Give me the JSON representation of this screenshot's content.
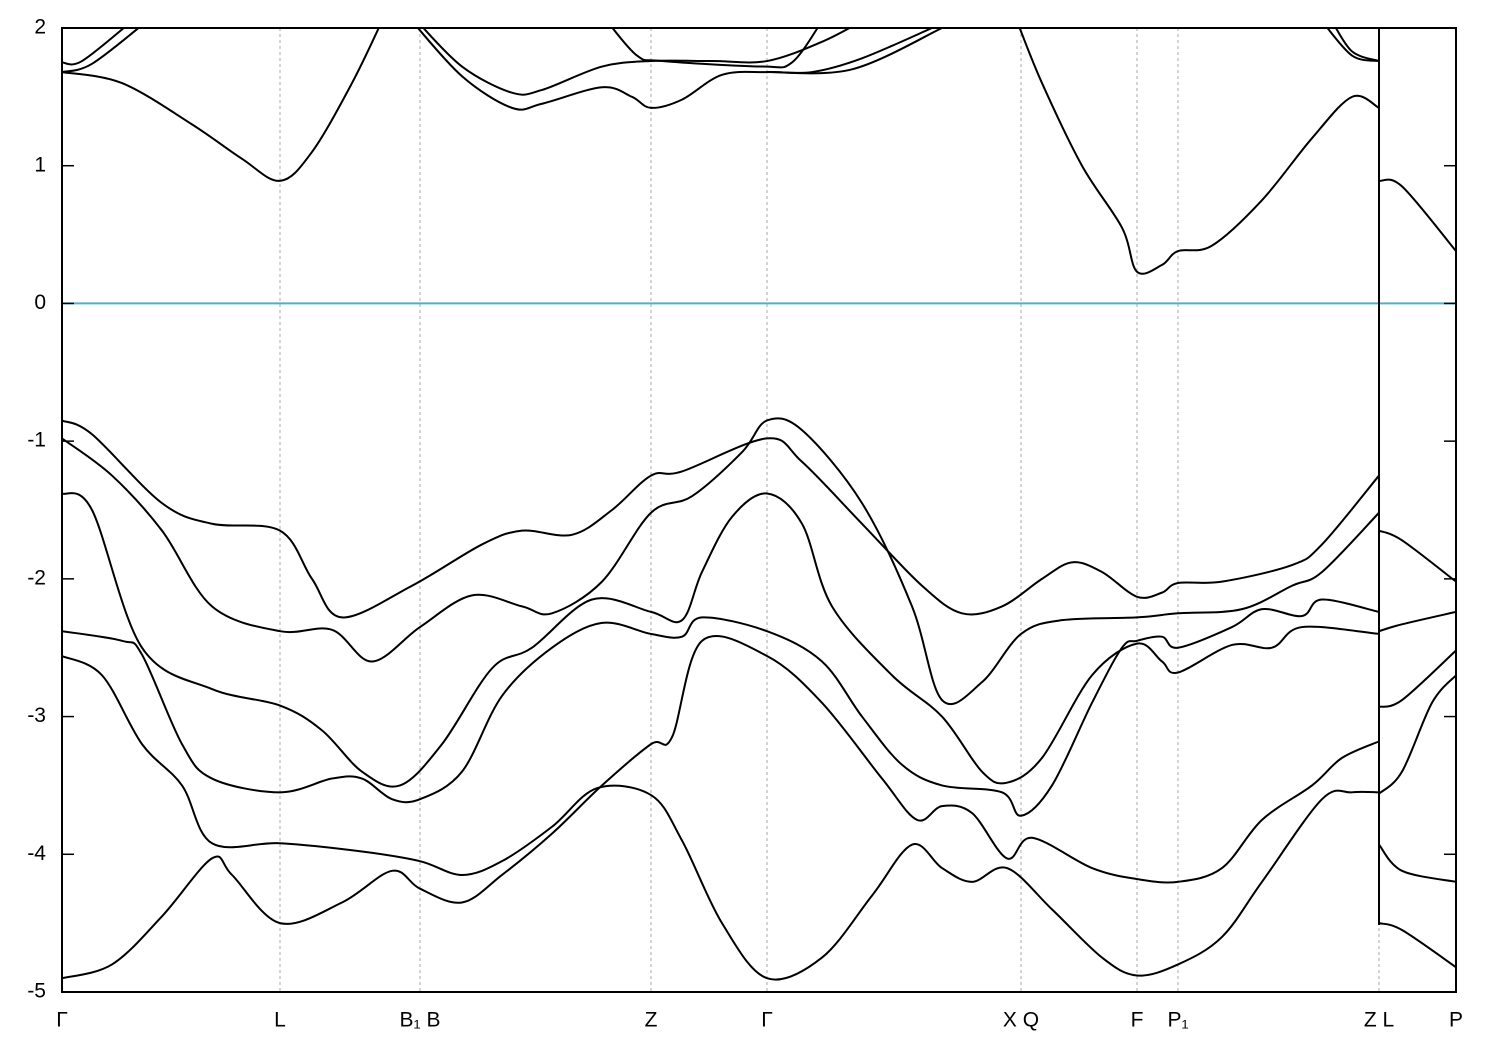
{
  "chart_data": {
    "type": "line",
    "xlim": [
      0,
      1394
    ],
    "ylim": [
      -5,
      2
    ],
    "yticks": [
      -5,
      -4,
      -3,
      -2,
      -1,
      0,
      1,
      2
    ],
    "xticks": [
      {
        "value": 0,
        "label": "Γ"
      },
      {
        "value": 218,
        "label": "L"
      },
      {
        "value": 358,
        "label": "B₁ B"
      },
      {
        "value": 589,
        "label": "Z"
      },
      {
        "value": 705,
        "label": "Γ"
      },
      {
        "value": 959,
        "label": "X Q"
      },
      {
        "value": 1075,
        "label": "F"
      },
      {
        "value": 1116,
        "label": "P₁"
      },
      {
        "value": 1317,
        "label": "Z L"
      },
      {
        "value": 1394,
        "label": "P"
      }
    ],
    "line_color": "#000000",
    "grid_color": "#aaaaaa",
    "hline": {
      "value": 0,
      "color": "#4fb0c6"
    },
    "series": [
      {
        "x": [
          0,
          60,
          130,
          180,
          218,
          250,
          290,
          320
        ],
        "values": [
          1.68,
          1.6,
          1.3,
          1.05,
          0.89,
          1.1,
          1.6,
          2.05
        ]
      },
      {
        "x": [
          0,
          20,
          70
        ],
        "values": [
          1.75,
          1.76,
          2.05
        ]
      },
      {
        "x": [
          0,
          30,
          85
        ],
        "values": [
          1.68,
          1.74,
          2.05
        ]
      },
      {
        "x": [
          350,
          400,
          450,
          480,
          540,
          570,
          589,
          620,
          660,
          705,
          750,
          800,
          870
        ],
        "values": [
          2.05,
          1.65,
          1.42,
          1.45,
          1.57,
          1.5,
          1.42,
          1.48,
          1.66,
          1.68,
          1.68,
          1.78,
          2.0
        ]
      },
      {
        "x": [
          355,
          400,
          450,
          480,
          540,
          589,
          650,
          705,
          760,
          800
        ],
        "values": [
          2.05,
          1.72,
          1.53,
          1.55,
          1.72,
          1.76,
          1.76,
          1.76,
          1.9,
          2.05
        ]
      },
      {
        "x": [
          545,
          575,
          600,
          700,
          730,
          760
        ],
        "values": [
          2.05,
          1.8,
          1.76,
          1.72,
          1.75,
          2.05
        ]
      },
      {
        "x": [
          705,
          790,
          880
        ],
        "values": [
          1.68,
          1.7,
          2.0
        ]
      },
      {
        "x": [
          955,
          980,
          1020,
          1060,
          1075,
          1100,
          1116,
          1150,
          1200,
          1250,
          1290,
          1317
        ],
        "values": [
          2.05,
          1.6,
          1.0,
          0.55,
          0.23,
          0.28,
          0.38,
          0.42,
          0.75,
          1.2,
          1.5,
          1.42
        ]
      },
      {
        "x": [
          1270,
          1290,
          1317
        ],
        "values": [
          2.05,
          1.83,
          1.76
        ]
      },
      {
        "x": [
          1260,
          1290,
          1317
        ],
        "values": [
          2.05,
          1.8,
          1.76
        ]
      },
      {
        "x": [
          1317,
          1340,
          1394
        ],
        "values": [
          0.89,
          0.85,
          0.38
        ]
      },
      {
        "x": [
          0,
          30,
          100,
          150,
          218,
          250,
          280,
          350,
          420,
          460,
          510,
          550,
          589,
          620,
          705,
          740,
          800,
          860,
          900,
          940,
          980,
          1010,
          1040,
          1075,
          1100,
          1116,
          1160,
          1230,
          1260,
          1317
        ],
        "values": [
          -0.85,
          -0.95,
          -1.45,
          -1.6,
          -1.65,
          -2.0,
          -2.28,
          -2.05,
          -1.75,
          -1.65,
          -1.68,
          -1.5,
          -1.25,
          -1.22,
          -0.98,
          -1.15,
          -1.6,
          -2.05,
          -2.25,
          -2.2,
          -2.0,
          -1.88,
          -1.95,
          -2.13,
          -2.1,
          -2.03,
          -2.02,
          -1.9,
          -1.75,
          -1.25
        ]
      },
      {
        "x": [
          0,
          50,
          100,
          150,
          218,
          270,
          310,
          358,
          410,
          460,
          490,
          540,
          589,
          630,
          680,
          705,
          740,
          800,
          850,
          880,
          920,
          959,
          1000,
          1075,
          1116,
          1180,
          1230,
          1260,
          1317
        ],
        "values": [
          -0.98,
          -1.25,
          -1.65,
          -2.2,
          -2.38,
          -2.37,
          -2.6,
          -2.35,
          -2.12,
          -2.2,
          -2.25,
          -2.02,
          -1.52,
          -1.4,
          -1.08,
          -0.85,
          -0.92,
          -1.45,
          -2.2,
          -2.88,
          -2.75,
          -2.4,
          -2.3,
          -2.28,
          -2.25,
          -2.22,
          -2.05,
          -1.95,
          -1.52
        ]
      },
      {
        "x": [
          0,
          30,
          80,
          150,
          218,
          260,
          300,
          338,
          380,
          430,
          470,
          530,
          589,
          620,
          640,
          670,
          705,
          740,
          770,
          830,
          880,
          920,
          945,
          980,
          1030,
          1075,
          1100,
          1116,
          1170,
          1210,
          1240,
          1317
        ],
        "values": [
          -1.38,
          -1.5,
          -2.5,
          -2.8,
          -2.92,
          -3.1,
          -3.4,
          -3.5,
          -3.2,
          -2.65,
          -2.5,
          -2.15,
          -2.24,
          -2.3,
          -1.95,
          -1.55,
          -1.38,
          -1.6,
          -2.2,
          -2.7,
          -3.0,
          -3.4,
          -3.48,
          -3.3,
          -2.7,
          -2.47,
          -2.6,
          -2.68,
          -2.48,
          -2.5,
          -2.35,
          -2.4
        ]
      },
      {
        "x": [
          0,
          60,
          80,
          120,
          150,
          218,
          270,
          300,
          330,
          358,
          400,
          440,
          490,
          540,
          589,
          620,
          640,
          705,
          760,
          800,
          840,
          880,
          940,
          959,
          990,
          1030,
          1060,
          1075,
          1100,
          1116,
          1170,
          1200,
          1240,
          1260,
          1317
        ],
        "values": [
          -2.38,
          -2.45,
          -2.55,
          -3.2,
          -3.45,
          -3.55,
          -3.45,
          -3.45,
          -3.6,
          -3.6,
          -3.4,
          -2.85,
          -2.5,
          -2.32,
          -2.4,
          -2.42,
          -2.28,
          -2.38,
          -2.6,
          -3.0,
          -3.35,
          -3.5,
          -3.55,
          -3.72,
          -3.5,
          -2.9,
          -2.5,
          -2.45,
          -2.42,
          -2.5,
          -2.35,
          -2.22,
          -2.27,
          -2.15,
          -2.24
        ]
      },
      {
        "x": [
          0,
          40,
          80,
          120,
          150,
          218,
          300,
          358,
          400,
          440,
          490,
          535,
          589,
          620,
          660,
          705,
          760,
          810,
          850,
          880,
          910,
          945,
          990,
          1040,
          1075,
          1116,
          1160,
          1200,
          1260,
          1290,
          1317
        ],
        "values": [
          -2.56,
          -2.7,
          -3.2,
          -3.5,
          -3.92,
          -3.92,
          -3.98,
          -4.05,
          -4.15,
          -4.05,
          -3.8,
          -3.52,
          -3.57,
          -3.9,
          -4.5,
          -4.9,
          -4.75,
          -4.3,
          -3.93,
          -4.1,
          -4.2,
          -4.1,
          -4.4,
          -4.75,
          -4.88,
          -4.8,
          -4.6,
          -4.2,
          -3.6,
          -3.55,
          -3.55
        ]
      },
      {
        "x": [
          0,
          50,
          100,
          150,
          170,
          218,
          280,
          330,
          358,
          400,
          440,
          490,
          540,
          589,
          610,
          640,
          705,
          760,
          820,
          855,
          880,
          910,
          945,
          970,
          1030,
          1075,
          1116,
          1160,
          1200,
          1250,
          1280,
          1317
        ],
        "values": [
          -4.9,
          -4.8,
          -4.45,
          -4.03,
          -4.15,
          -4.5,
          -4.35,
          -4.12,
          -4.25,
          -4.35,
          -4.15,
          -3.85,
          -3.5,
          -3.2,
          -3.15,
          -2.45,
          -2.56,
          -2.9,
          -3.45,
          -3.75,
          -3.65,
          -3.7,
          -4.03,
          -3.88,
          -4.1,
          -4.18,
          -4.2,
          -4.1,
          -3.75,
          -3.5,
          -3.3,
          -3.18
        ]
      },
      {
        "x": [
          1317,
          1340,
          1394
        ],
        "values": [
          -1.65,
          -1.72,
          -2.02
        ]
      },
      {
        "x": [
          1317,
          1340,
          1394
        ],
        "values": [
          -2.38,
          -2.33,
          -2.24
        ]
      },
      {
        "x": [
          1317,
          1340,
          1394
        ],
        "values": [
          -2.93,
          -2.88,
          -2.52
        ]
      },
      {
        "x": [
          1317,
          1340,
          1370,
          1394
        ],
        "values": [
          -3.56,
          -3.4,
          -2.9,
          -2.7
        ]
      },
      {
        "x": [
          1317,
          1340,
          1394
        ],
        "values": [
          -3.93,
          -4.12,
          -4.2
        ]
      },
      {
        "x": [
          1317,
          1340,
          1394
        ],
        "values": [
          -4.5,
          -4.55,
          -4.82
        ]
      }
    ]
  }
}
